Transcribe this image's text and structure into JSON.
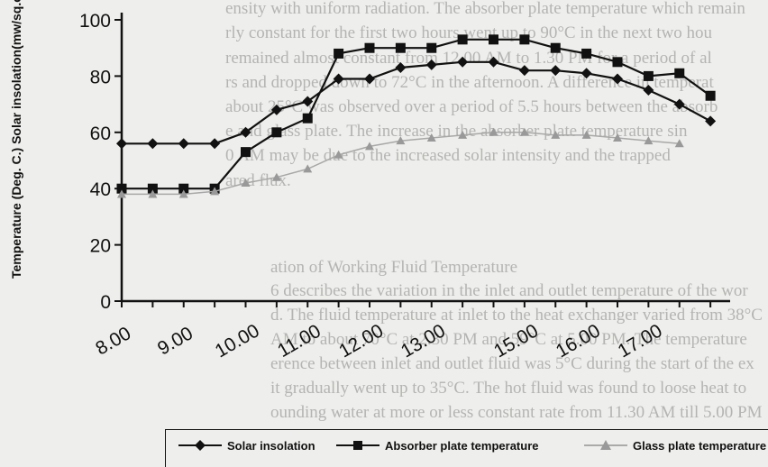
{
  "chart_data": {
    "type": "line",
    "ylabel": "Temperature (Deg. C.)  Solar insolation(mw/sq.cm.)",
    "xlabel": "",
    "ylim": [
      0,
      100
    ],
    "yticks": [
      0,
      20,
      40,
      60,
      80,
      100
    ],
    "x_tick_labels": [
      "8.00",
      "9.00",
      "10.00",
      "11.00",
      "12.00",
      "13.00",
      "15.00",
      "16.00",
      "17.00"
    ],
    "x": [
      8.0,
      8.5,
      9.0,
      9.5,
      10.0,
      10.5,
      11.0,
      11.5,
      12.0,
      12.5,
      13.0,
      13.5,
      14.0,
      14.5,
      15.0,
      15.5,
      16.0,
      16.5,
      17.0,
      17.5
    ],
    "xlim": [
      8.0,
      17.6
    ],
    "grid": false,
    "legend_position": "bottom",
    "series": [
      {
        "name": "Solar insolation",
        "marker": "diamond",
        "color": "#111111",
        "x": [
          8.0,
          8.5,
          9.0,
          9.5,
          10.0,
          10.5,
          11.0,
          11.5,
          12.0,
          12.5,
          13.0,
          13.5,
          14.0,
          14.5,
          15.0,
          15.5,
          16.0,
          16.5,
          17.0,
          17.5
        ],
        "values": [
          56,
          56,
          56,
          56,
          60,
          68,
          71,
          79,
          79,
          83,
          84,
          85,
          85,
          82,
          82,
          81,
          79,
          75,
          70,
          64
        ]
      },
      {
        "name": "Absorber plate temperature",
        "marker": "square",
        "color": "#111111",
        "x": [
          8.0,
          8.5,
          9.0,
          9.5,
          10.0,
          10.5,
          11.0,
          11.5,
          12.0,
          12.5,
          13.0,
          13.5,
          14.0,
          14.5,
          15.0,
          15.5,
          16.0,
          16.5,
          17.0,
          17.5
        ],
        "values": [
          40,
          40,
          40,
          40,
          53,
          60,
          65,
          88,
          90,
          90,
          90,
          93,
          93,
          93,
          90,
          88,
          85,
          80,
          81,
          73
        ]
      },
      {
        "name": "Glass plate temperature",
        "marker": "triangle",
        "color": "#999999",
        "x": [
          8.0,
          8.5,
          9.0,
          9.5,
          10.0,
          10.5,
          11.0,
          11.5,
          12.0,
          12.5,
          13.0,
          13.5,
          14.0,
          14.5,
          15.0,
          15.5,
          16.0,
          16.5,
          17.0
        ],
        "values": [
          38,
          38,
          38,
          39,
          42,
          44,
          47,
          52,
          55,
          57,
          58,
          59,
          60,
          60,
          59,
          59,
          58,
          57,
          56
        ]
      }
    ]
  },
  "background_text": [
    "ensity with uniform radiation. The absorber plate temperature which remain",
    "rly constant for the first two hours went up to 90°C in the next two hou",
    "remained almost constant from 12.00 AM to 1.30 PM for a period of al",
    "rs and dropped down to 72°C in the afternoon. A difference in temperat",
    "about 25°C was observed over a period of 5.5 hours between the absorb",
    "e and glass plate. The increase in the absorber plate temperature sin",
    "0 AM may be due to the increased solar intensity and the trapped",
    "ared flux.",
    "ation of Working Fluid Temperature",
    "6 describes the variation in the inlet and outlet temperature of the wor",
    "d. The fluid temperature at inlet to the heat exchanger varied from 38°C",
    "AM to about 70°C at 2.30 PM and 59°C at 5.00 PM. The temperature",
    "erence between inlet and outlet fluid was 5°C during the start of the ex",
    "it gradually went up to 35°C. The hot fluid was found to loose heat to",
    "ounding water at more or less constant rate from 11.30 AM till 5.00 PM"
  ]
}
